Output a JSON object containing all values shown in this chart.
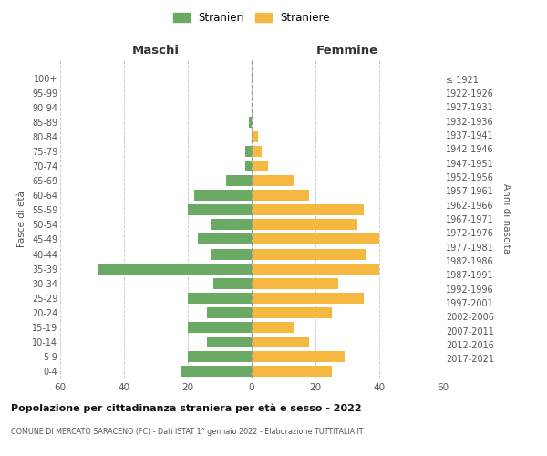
{
  "age_groups": [
    "0-4",
    "5-9",
    "10-14",
    "15-19",
    "20-24",
    "25-29",
    "30-34",
    "35-39",
    "40-44",
    "45-49",
    "50-54",
    "55-59",
    "60-64",
    "65-69",
    "70-74",
    "75-79",
    "80-84",
    "85-89",
    "90-94",
    "95-99",
    "100+"
  ],
  "birth_years": [
    "2017-2021",
    "2012-2016",
    "2007-2011",
    "2002-2006",
    "1997-2001",
    "1992-1996",
    "1987-1991",
    "1982-1986",
    "1977-1981",
    "1972-1976",
    "1967-1971",
    "1962-1966",
    "1957-1961",
    "1952-1956",
    "1947-1951",
    "1942-1946",
    "1937-1941",
    "1932-1936",
    "1927-1931",
    "1922-1926",
    "≤ 1921"
  ],
  "maschi": [
    22,
    20,
    14,
    20,
    14,
    20,
    12,
    48,
    13,
    17,
    13,
    20,
    18,
    8,
    2,
    2,
    0,
    1,
    0,
    0,
    0
  ],
  "femmine": [
    25,
    29,
    18,
    13,
    25,
    35,
    27,
    40,
    36,
    40,
    33,
    35,
    18,
    13,
    5,
    3,
    2,
    0,
    0,
    0,
    0
  ],
  "maschi_color": "#6aaa64",
  "femmine_color": "#f5b942",
  "background_color": "#ffffff",
  "grid_color": "#cccccc",
  "title": "Popolazione per cittadinanza straniera per età e sesso - 2022",
  "subtitle": "COMUNE DI MERCATO SARACENO (FC) - Dati ISTAT 1° gennaio 2022 - Elaborazione TUTTITALIA.IT",
  "xlabel_left": "Maschi",
  "xlabel_right": "Femmine",
  "ylabel_left": "Fasce di età",
  "ylabel_right": "Anni di nascita",
  "legend_maschi": "Stranieri",
  "legend_femmine": "Straniere",
  "xlim": 60,
  "xticks": [
    -60,
    -40,
    -20,
    0,
    20,
    40,
    60
  ],
  "xticklabels": [
    "60",
    "40",
    "20",
    "0",
    "20",
    "40",
    "60"
  ]
}
